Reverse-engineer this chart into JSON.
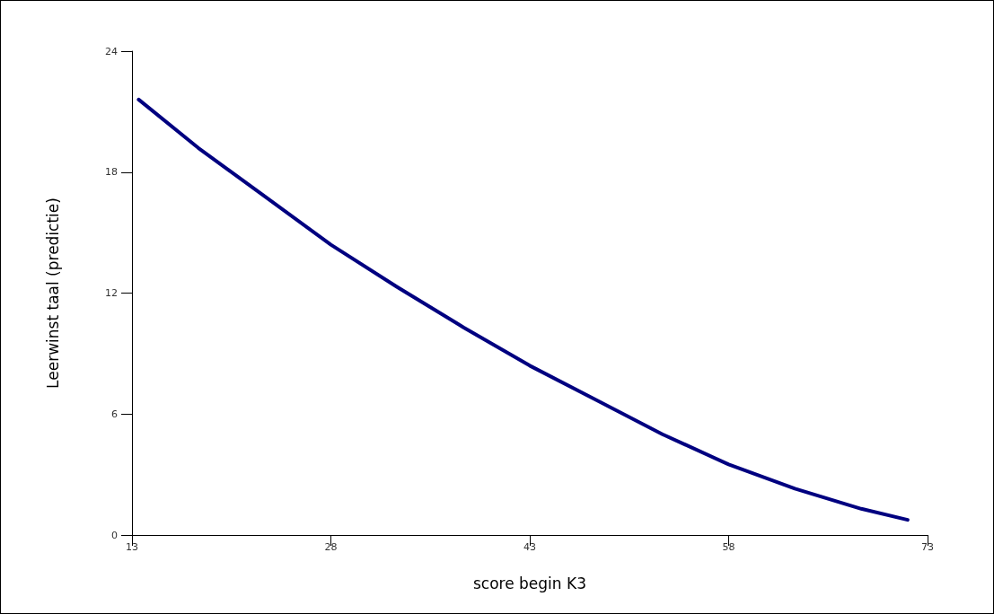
{
  "chart_data": {
    "type": "line",
    "xlabel": "score begin K3",
    "ylabel": "Leerwinst taal (predictie)",
    "x": [
      13.5,
      18,
      23,
      28,
      33,
      38,
      43,
      48,
      53,
      58,
      63,
      68,
      71.5
    ],
    "series": [
      {
        "color": "#000080",
        "values": [
          21.6,
          19.2,
          16.8,
          14.4,
          12.3,
          10.3,
          8.4,
          6.7,
          5.0,
          3.5,
          2.3,
          1.3,
          0.75
        ]
      }
    ],
    "xlim": [
      13,
      73
    ],
    "xticks": [
      13,
      28,
      43,
      58,
      73
    ],
    "ylim": [
      0,
      24
    ],
    "yticks": [
      0,
      6,
      12,
      18,
      24
    ],
    "grid": false,
    "marker": "none",
    "line_style": "solid"
  }
}
